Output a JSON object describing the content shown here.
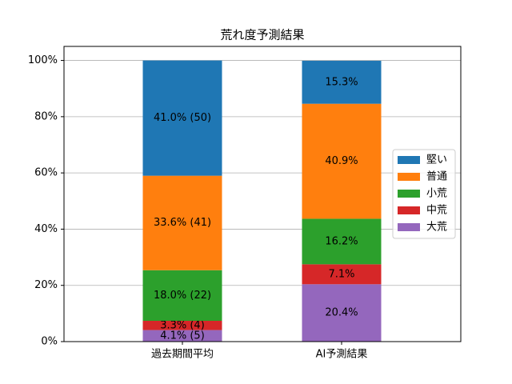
{
  "chart_data": {
    "type": "stacked_bar",
    "title": "荒れ度予測結果",
    "categories": [
      "過去期間平均",
      "AI予測結果"
    ],
    "series": [
      {
        "name": "大荒",
        "color": "#9467bd",
        "values": [
          4.1,
          20.4
        ],
        "value_labels": [
          "4.1% (5)",
          "20.4%"
        ]
      },
      {
        "name": "中荒",
        "color": "#d62728",
        "values": [
          3.3,
          7.1
        ],
        "value_labels": [
          "3.3% (4)",
          "7.1%"
        ]
      },
      {
        "name": "小荒",
        "color": "#2ca02c",
        "values": [
          18.0,
          16.2
        ],
        "value_labels": [
          "18.0% (22)",
          "16.2%"
        ]
      },
      {
        "name": "普通",
        "color": "#ff7f0e",
        "values": [
          33.6,
          40.9
        ],
        "value_labels": [
          "33.6% (41)",
          "40.9%"
        ]
      },
      {
        "name": "堅い",
        "color": "#1f77b4",
        "values": [
          41.0,
          15.3
        ],
        "value_labels": [
          "41.0% (50)",
          "15.3%"
        ]
      }
    ],
    "ylim": [
      0,
      105
    ],
    "yticks": [
      {
        "value": 0,
        "label": "0%"
      },
      {
        "value": 20,
        "label": "20%"
      },
      {
        "value": 40,
        "label": "40%"
      },
      {
        "value": 60,
        "label": "60%"
      },
      {
        "value": 80,
        "label": "80%"
      },
      {
        "value": 100,
        "label": "100%"
      }
    ],
    "grid": true,
    "legend": "center right"
  }
}
